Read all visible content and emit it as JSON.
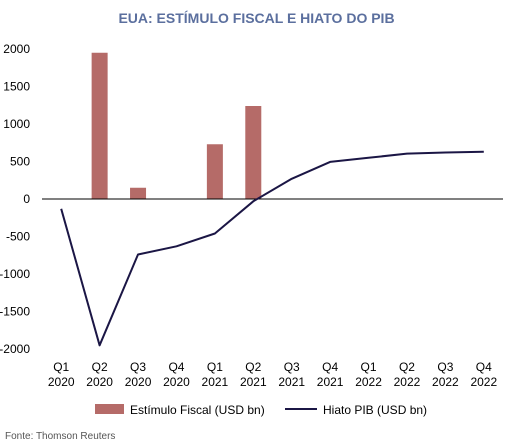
{
  "chart_data": {
    "type": "bar",
    "title": "EUA: ESTÍMULO FISCAL E HIATO DO PIB",
    "xlabel": "",
    "ylabel": "",
    "ylim": [
      -2000,
      2000
    ],
    "yticks": [
      2000,
      1500,
      1000,
      500,
      0,
      -500,
      -1000,
      -1500,
      -2000
    ],
    "categories": [
      [
        "Q1",
        "2020"
      ],
      [
        "Q2",
        "2020"
      ],
      [
        "Q3",
        "2020"
      ],
      [
        "Q4",
        "2020"
      ],
      [
        "Q1",
        "2021"
      ],
      [
        "Q2",
        "2021"
      ],
      [
        "Q3",
        "2021"
      ],
      [
        "Q4",
        "2021"
      ],
      [
        "Q1",
        "2022"
      ],
      [
        "Q2",
        "2022"
      ],
      [
        "Q3",
        "2022"
      ],
      [
        "Q4",
        "2022"
      ]
    ],
    "series": [
      {
        "name": "Estímulo Fiscal (USD bn)",
        "type": "bar",
        "values": [
          null,
          1950,
          150,
          null,
          730,
          1240,
          null,
          null,
          null,
          null,
          null,
          null
        ]
      },
      {
        "name": "Hiato PIB (USD bn)",
        "type": "line",
        "values": [
          -130,
          -1950,
          -740,
          -630,
          -460,
          -30,
          270,
          495,
          550,
          605,
          620,
          630
        ]
      }
    ],
    "legend_position": "bottom",
    "grid": false,
    "colors": {
      "bar": "#b56b68",
      "line": "#1b1645",
      "title": "#5b6f9e",
      "axis": "#000000"
    }
  },
  "source": "Fonte: Thomson Reuters"
}
